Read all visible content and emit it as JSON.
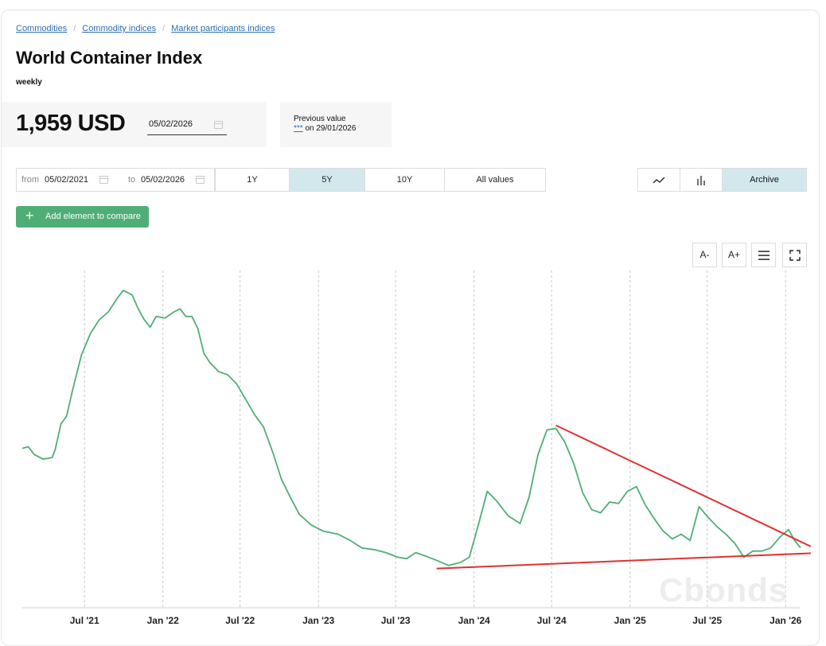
{
  "breadcrumb": [
    "Commodities",
    "Commodity indices",
    "Market participants indices"
  ],
  "title": "World Container Index",
  "subtitle": "weekly",
  "current": {
    "value": "1,959 USD",
    "date": "05/02/2026"
  },
  "previous": {
    "label": "Previous value",
    "value": "***",
    "date_text": "on 29/01/2026"
  },
  "range": {
    "from_label": "from",
    "from": "05/02/2021",
    "to_label": "to",
    "to": "05/02/2026"
  },
  "periods": [
    {
      "label": "1Y",
      "active": false
    },
    {
      "label": "5Y",
      "active": true
    },
    {
      "label": "10Y",
      "active": false
    },
    {
      "label": "All values",
      "active": false
    }
  ],
  "views": {
    "line_icon": "line-chart-icon",
    "bar_icon": "bar-chart-icon",
    "archive_label": "Archive"
  },
  "compare_label": "Add element to compare",
  "tools": {
    "font_smaller": "A-",
    "font_larger": "A+",
    "menu_icon": "menu-icon",
    "fullscreen_icon": "fullscreen-icon"
  },
  "watermark": "Cbonds",
  "colors": {
    "line": "#4fae76",
    "trend": "#e03030",
    "active": "#d3e8ec",
    "accent": "#2c6fb3"
  },
  "chart_data": {
    "type": "line",
    "title": "",
    "xlabel": "",
    "ylabel": "",
    "x_ticks": [
      "Jul '21",
      "Jan '22",
      "Jul '22",
      "Jan '23",
      "Jul '23",
      "Jan '24",
      "Jul '24",
      "Jan '25",
      "Jul '25",
      "Jan '26"
    ],
    "x_tick_dates": [
      "2021-07-01",
      "2022-01-01",
      "2022-07-01",
      "2023-01-01",
      "2023-07-01",
      "2024-01-01",
      "2024-07-01",
      "2025-01-01",
      "2025-07-01",
      "2026-01-01"
    ],
    "xlim": [
      "2021-02-05",
      "2026-02-05"
    ],
    "ylim": [
      0,
      11000
    ],
    "grid": {
      "vertical": true,
      "horizontal": false
    },
    "series": [
      {
        "values": [
          [
            "2021-02-05",
            5200
          ],
          [
            "2021-02-19",
            5250
          ],
          [
            "2021-03-05",
            5000
          ],
          [
            "2021-03-26",
            4850
          ],
          [
            "2021-04-16",
            4900
          ],
          [
            "2021-04-23",
            5150
          ],
          [
            "2021-05-07",
            6000
          ],
          [
            "2021-05-20",
            6250
          ],
          [
            "2021-06-03",
            7100
          ],
          [
            "2021-06-24",
            8250
          ],
          [
            "2021-07-15",
            8950
          ],
          [
            "2021-08-05",
            9400
          ],
          [
            "2021-08-26",
            9650
          ],
          [
            "2021-09-16",
            10100
          ],
          [
            "2021-09-30",
            10350
          ],
          [
            "2021-10-21",
            10200
          ],
          [
            "2021-11-04",
            9750
          ],
          [
            "2021-11-18",
            9400
          ],
          [
            "2021-12-02",
            9150
          ],
          [
            "2021-12-16",
            9500
          ],
          [
            "2022-01-06",
            9450
          ],
          [
            "2022-01-27",
            9650
          ],
          [
            "2022-02-10",
            9750
          ],
          [
            "2022-02-24",
            9500
          ],
          [
            "2022-03-10",
            9500
          ],
          [
            "2022-03-24",
            9100
          ],
          [
            "2022-04-07",
            8300
          ],
          [
            "2022-04-21",
            8000
          ],
          [
            "2022-05-12",
            7700
          ],
          [
            "2022-06-02",
            7600
          ],
          [
            "2022-06-23",
            7300
          ],
          [
            "2022-07-14",
            6800
          ],
          [
            "2022-08-04",
            6300
          ],
          [
            "2022-08-25",
            5900
          ],
          [
            "2022-09-15",
            5100
          ],
          [
            "2022-10-06",
            4200
          ],
          [
            "2022-10-27",
            3600
          ],
          [
            "2022-11-17",
            3050
          ],
          [
            "2022-12-15",
            2700
          ],
          [
            "2023-01-12",
            2500
          ],
          [
            "2023-02-16",
            2400
          ],
          [
            "2023-03-16",
            2200
          ],
          [
            "2023-04-13",
            1950
          ],
          [
            "2023-05-11",
            1900
          ],
          [
            "2023-06-08",
            1800
          ],
          [
            "2023-07-06",
            1650
          ],
          [
            "2023-07-27",
            1600
          ],
          [
            "2023-08-17",
            1800
          ],
          [
            "2023-09-07",
            1700
          ],
          [
            "2023-10-05",
            1550
          ],
          [
            "2023-11-02",
            1380
          ],
          [
            "2023-11-30",
            1480
          ],
          [
            "2023-12-21",
            1650
          ],
          [
            "2024-01-11",
            2700
          ],
          [
            "2024-02-01",
            3800
          ],
          [
            "2024-02-22",
            3500
          ],
          [
            "2024-03-21",
            3000
          ],
          [
            "2024-04-18",
            2750
          ],
          [
            "2024-05-09",
            3600
          ],
          [
            "2024-05-30",
            5000
          ],
          [
            "2024-06-20",
            5800
          ],
          [
            "2024-07-11",
            5850
          ],
          [
            "2024-08-01",
            5400
          ],
          [
            "2024-08-22",
            4700
          ],
          [
            "2024-09-12",
            3750
          ],
          [
            "2024-10-03",
            3200
          ],
          [
            "2024-10-24",
            3100
          ],
          [
            "2024-11-14",
            3450
          ],
          [
            "2024-12-05",
            3400
          ],
          [
            "2024-12-26",
            3800
          ],
          [
            "2025-01-16",
            3950
          ],
          [
            "2025-02-06",
            3350
          ],
          [
            "2025-02-27",
            2900
          ],
          [
            "2025-03-20",
            2500
          ],
          [
            "2025-04-10",
            2250
          ],
          [
            "2025-05-01",
            2400
          ],
          [
            "2025-05-22",
            2200
          ],
          [
            "2025-06-12",
            3300
          ],
          [
            "2025-07-03",
            2950
          ],
          [
            "2025-07-24",
            2650
          ],
          [
            "2025-08-14",
            2400
          ],
          [
            "2025-09-04",
            2100
          ],
          [
            "2025-09-25",
            1650
          ],
          [
            "2025-10-16",
            1850
          ],
          [
            "2025-11-06",
            1850
          ],
          [
            "2025-11-27",
            1950
          ],
          [
            "2025-12-18",
            2300
          ],
          [
            "2026-01-08",
            2550
          ],
          [
            "2026-01-22",
            2200
          ],
          [
            "2026-02-05",
            1959
          ]
        ]
      }
    ],
    "annotations": [
      {
        "type": "trendline",
        "from": [
          "2024-07-11",
          5950
        ],
        "to": [
          "2026-03-01",
          2000
        ]
      },
      {
        "type": "trendline",
        "from": [
          "2023-10-05",
          1280
        ],
        "to": [
          "2026-03-01",
          1780
        ]
      }
    ]
  }
}
